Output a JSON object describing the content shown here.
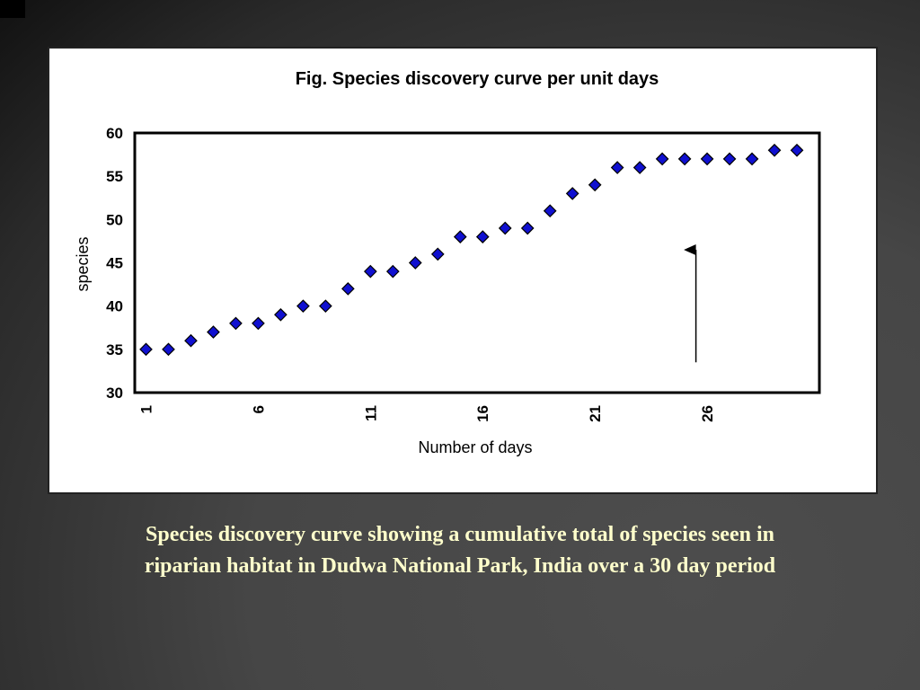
{
  "chart_data": {
    "type": "scatter",
    "title": "Fig. Species discovery curve per unit days",
    "xlabel": "Number of days",
    "ylabel": "species",
    "x_tick_labels": [
      "1",
      "6",
      "11",
      "16",
      "21",
      "26"
    ],
    "y_tick_labels": [
      "30",
      "35",
      "40",
      "45",
      "50",
      "55",
      "60"
    ],
    "xlim": [
      0.5,
      31.0
    ],
    "ylim": [
      30,
      60
    ],
    "grid": false,
    "legend": "none",
    "marker": "diamond",
    "marker_color": "#1010d0",
    "x": [
      1,
      2,
      3,
      4,
      5,
      6,
      7,
      8,
      9,
      10,
      11,
      12,
      13,
      14,
      15,
      16,
      17,
      18,
      19,
      20,
      21,
      22,
      23,
      24,
      25,
      26,
      27,
      28,
      29,
      30
    ],
    "values": [
      35,
      35,
      36,
      37,
      38,
      38,
      39,
      40,
      40,
      42,
      44,
      44,
      45,
      46,
      48,
      48,
      49,
      49,
      51,
      53,
      54,
      56,
      56,
      57,
      57,
      57,
      57,
      57,
      58,
      58
    ],
    "annotation": {
      "type": "arrow",
      "x": 25.5,
      "y_from": 33.5,
      "y_to": 46.5
    }
  },
  "caption": {
    "line1": "Species discovery curve showing a cumulative total of species seen in",
    "line2": "riparian habitat in Dudwa National Park, India over a 30 day period"
  }
}
